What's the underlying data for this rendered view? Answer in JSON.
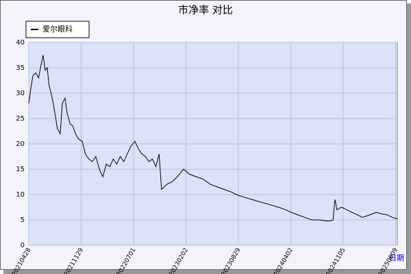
{
  "chart_data": {
    "type": "line",
    "title": "市净率  对比",
    "x_label": "日期",
    "x": [
      0,
      6,
      12,
      20,
      28,
      35,
      41,
      47,
      53,
      58,
      64,
      70,
      76,
      82,
      90,
      96,
      104,
      110,
      118,
      126,
      134,
      142,
      153,
      162,
      172,
      182,
      192,
      202,
      212,
      222,
      232,
      242,
      252,
      262,
      272,
      282,
      292,
      304,
      314,
      324,
      334,
      344,
      354,
      364,
      373,
      377,
      380,
      395,
      410,
      425,
      443,
      460,
      480,
      500,
      520,
      540,
      560,
      580,
      594,
      615,
      640,
      665,
      690,
      715,
      735,
      751,
      770,
      790,
      810,
      830,
      850,
      865,
      871,
      875,
      877,
      882,
      895,
      910,
      925,
      940,
      955,
      977,
      995,
      1010,
      1026,
      1040,
      1055
    ],
    "series": [
      {
        "name": "爱尔眼科",
        "color": "#000000",
        "values": [
          28,
          31,
          33.5,
          34,
          33,
          35.5,
          37.5,
          34.5,
          35,
          31.5,
          30,
          28,
          25.5,
          23,
          22,
          28,
          29,
          26,
          24,
          23.5,
          22,
          21,
          20.5,
          18,
          17,
          16.5,
          17.5,
          15,
          13.5,
          16,
          15.5,
          17,
          16,
          17.5,
          16.5,
          18,
          19.5,
          20.5,
          19,
          18,
          17.5,
          16.5,
          17,
          15.5,
          18,
          14,
          11,
          12,
          12.5,
          13.5,
          15,
          14,
          13.5,
          13,
          12,
          11.5,
          11,
          10.5,
          10,
          9.5,
          9,
          8.5,
          8,
          7.5,
          7,
          6.5,
          6,
          5.5,
          5,
          5,
          4.8,
          4.8,
          5,
          8,
          9,
          7,
          7.5,
          7,
          6.5,
          6,
          5.5,
          6,
          6.5,
          6.2,
          6,
          5.5,
          5.2
        ]
      }
    ],
    "xlim": [
      0,
      1055
    ],
    "xticks": [
      {
        "value": 0,
        "label": "20210428"
      },
      {
        "value": 150,
        "label": "20211129"
      },
      {
        "value": 300,
        "label": "20220701"
      },
      {
        "value": 450,
        "label": "20230202"
      },
      {
        "value": 600,
        "label": "20230829"
      },
      {
        "value": 750,
        "label": "20240402"
      },
      {
        "value": 900,
        "label": "20241105"
      },
      {
        "value": 1050,
        "label": "20250609"
      }
    ],
    "ylim": [
      0,
      40
    ],
    "yticks": [
      0,
      5,
      10,
      15,
      20,
      25,
      30,
      35,
      40
    ],
    "grid": true
  }
}
